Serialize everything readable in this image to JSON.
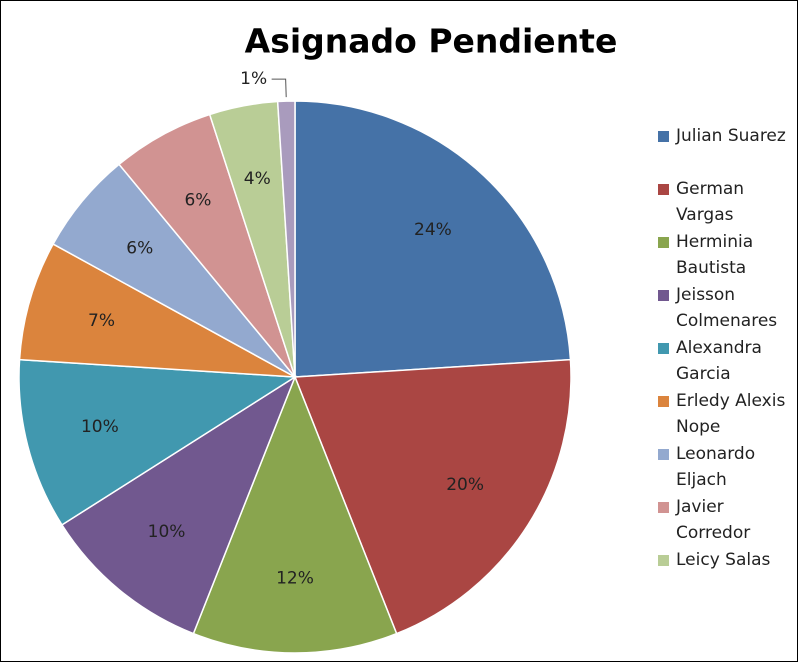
{
  "chart_data": {
    "type": "pie",
    "title": "Asignado Pendiente",
    "categories": [
      "Julian Suarez",
      "German Vargas",
      "Herminia Bautista",
      "Jeisson Colmenares",
      "Alexandra Garcia",
      "Erledy Alexis Nope",
      "Leonardo Eljach",
      "Javier Corredor",
      "Leicy Salas",
      null
    ],
    "values": [
      24,
      20,
      12,
      10,
      10,
      7,
      6,
      6,
      4,
      1
    ],
    "value_labels": [
      "24%",
      "20%",
      "12%",
      "10%",
      "10%",
      "7%",
      "6%",
      "6%",
      "4%",
      "1%"
    ],
    "colors": [
      "#4572a7",
      "#aa4643",
      "#89a54e",
      "#71588f",
      "#4198af",
      "#db843d",
      "#93a9cf",
      "#d19392",
      "#b9cd96",
      "#a99bbd"
    ],
    "legend": "right"
  }
}
